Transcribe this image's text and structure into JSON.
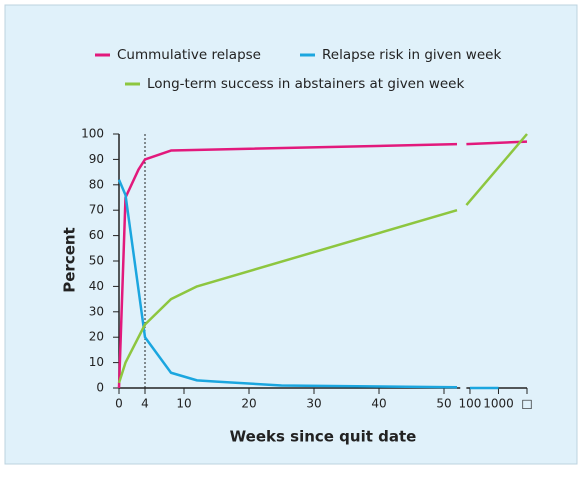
{
  "chart_data": {
    "type": "line",
    "ylabel": "Percent",
    "xlabel": "Weeks since quit date",
    "ylim": [
      0,
      100
    ],
    "yticks": [
      0,
      10,
      20,
      30,
      40,
      50,
      60,
      70,
      80,
      90,
      100
    ],
    "x_segments": [
      {
        "xlim": [
          0,
          52.5
        ],
        "xticks": [
          0,
          4,
          10,
          20,
          30,
          40,
          50
        ]
      },
      {
        "xlim": [
          75,
          10000
        ],
        "scale": "log",
        "xticks": [
          100,
          1000,
          {
            "value": 10000,
            "label": "□"
          }
        ]
      }
    ],
    "vline": 4,
    "series": [
      {
        "name": "Cummulative relapse",
        "color": "#e2197c",
        "x": [
          0,
          1,
          3,
          4,
          8,
          52,
          75,
          10000
        ],
        "values": [
          0,
          75,
          86,
          90,
          93.5,
          96,
          96,
          97
        ]
      },
      {
        "name": "Relapse risk in given week",
        "color": "#1ba6df",
        "x": [
          0,
          1,
          4,
          8,
          12,
          15,
          25,
          52,
          100,
          1000
        ],
        "values": [
          82,
          76,
          20,
          6,
          3,
          2.5,
          1,
          0.3,
          0,
          0
        ]
      },
      {
        "name": "Long-term success in abstainers at given week",
        "color": "#8dc63f",
        "x": [
          0,
          1,
          4,
          8,
          12,
          52,
          75,
          10000
        ],
        "values": [
          2,
          10,
          25,
          35,
          40,
          70,
          72,
          100
        ]
      }
    ]
  }
}
